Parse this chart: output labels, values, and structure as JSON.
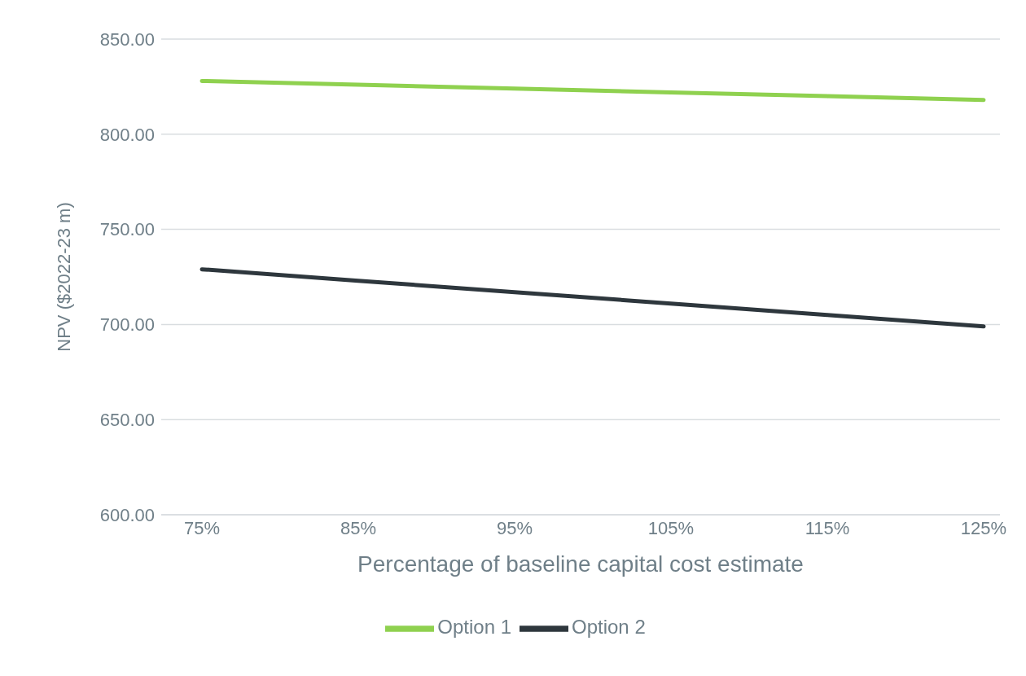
{
  "chart_data": {
    "type": "line",
    "xlabel": "Percentage of baseline capital cost estimate",
    "ylabel": "NPV ($2022-23 m)",
    "categories": [
      "75%",
      "85%",
      "95%",
      "105%",
      "115%",
      "125%"
    ],
    "series": [
      {
        "name": "Option 1",
        "color": "#8fd14f",
        "values": [
          828,
          826,
          824,
          822,
          820,
          818
        ]
      },
      {
        "name": "Option 2",
        "color": "#2e373d",
        "values": [
          729,
          723,
          717,
          711,
          705,
          699
        ]
      }
    ],
    "ylim": [
      600,
      850
    ],
    "yticks": [
      {
        "value": 600,
        "label": "600.00"
      },
      {
        "value": 650,
        "label": "650.00"
      },
      {
        "value": 700,
        "label": "700.00"
      },
      {
        "value": 750,
        "label": "750.00"
      },
      {
        "value": 800,
        "label": "800.00"
      },
      {
        "value": 850,
        "label": "850.00"
      }
    ],
    "grid": "y",
    "legend": "bottom",
    "marker": "none",
    "line_style": "solid"
  }
}
